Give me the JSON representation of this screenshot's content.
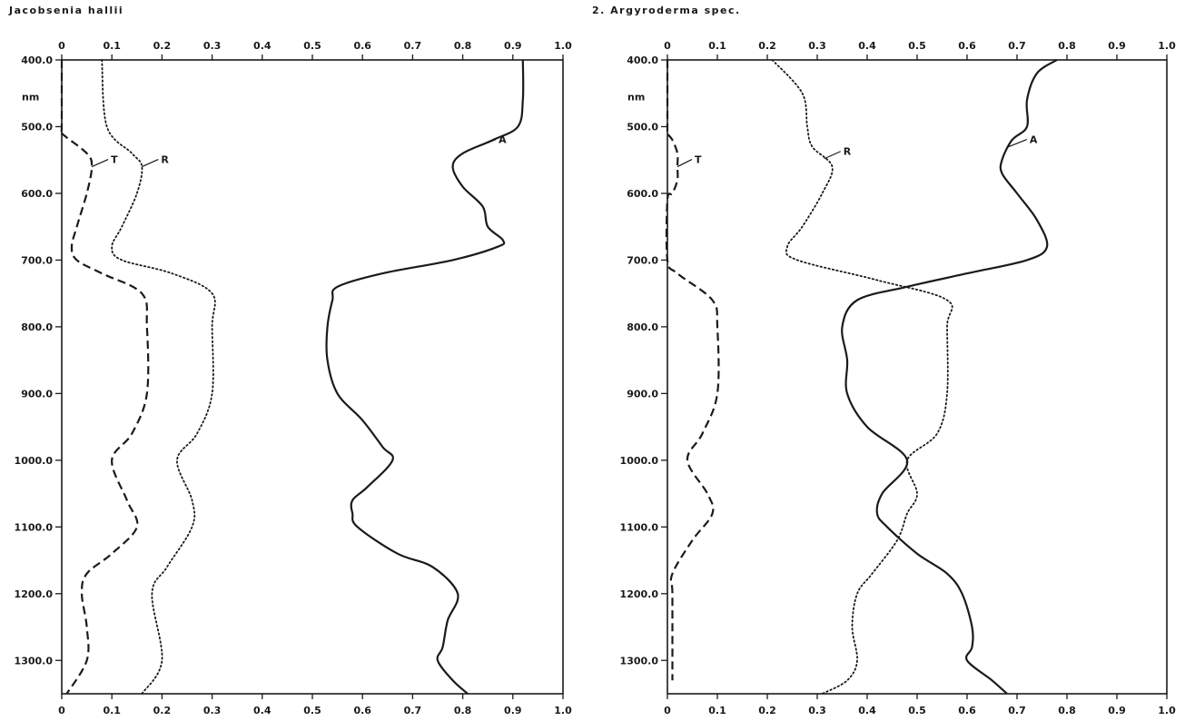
{
  "chart_data": [
    {
      "type": "line",
      "title": "Jacobsenia hallii",
      "unit_label": "nm",
      "xlim": [
        0,
        1.0
      ],
      "ylim": [
        400,
        1350
      ],
      "y_reversed": true,
      "x_ticks": [
        "0",
        "0.1",
        "0.2",
        "0.3",
        "0.4",
        "0.5",
        "0.6",
        "0.7",
        "0.8",
        "0.9",
        "1.0"
      ],
      "y_ticks": [
        "400.0",
        "500.0",
        "600.0",
        "700.0",
        "800.0",
        "900.0",
        "1000.0",
        "1100.0",
        "1200.0",
        "1300.0"
      ],
      "series": [
        {
          "name": "T",
          "style": "dashed",
          "wavelength": [
            400,
            500,
            510,
            540,
            560,
            600,
            650,
            680,
            700,
            720,
            750,
            800,
            900,
            960,
            1000,
            1060,
            1100,
            1140,
            1170,
            1200,
            1250,
            1300,
            1350
          ],
          "values": [
            0.0,
            0.0,
            0.0,
            0.05,
            0.06,
            0.05,
            0.03,
            0.02,
            0.03,
            0.08,
            0.16,
            0.17,
            0.17,
            0.14,
            0.1,
            0.13,
            0.15,
            0.1,
            0.05,
            0.04,
            0.05,
            0.05,
            0.01
          ]
        },
        {
          "name": "R",
          "style": "dotted",
          "wavelength": [
            400,
            500,
            540,
            560,
            600,
            650,
            680,
            700,
            720,
            750,
            800,
            900,
            960,
            1000,
            1060,
            1100,
            1160,
            1200,
            1300,
            1350
          ],
          "values": [
            0.08,
            0.09,
            0.14,
            0.16,
            0.15,
            0.12,
            0.1,
            0.12,
            0.22,
            0.3,
            0.3,
            0.3,
            0.27,
            0.23,
            0.26,
            0.26,
            0.21,
            0.18,
            0.2,
            0.16
          ]
        },
        {
          "name": "A",
          "style": "solid",
          "wavelength": [
            400,
            460,
            500,
            520,
            540,
            560,
            590,
            620,
            650,
            670,
            680,
            700,
            720,
            740,
            760,
            800,
            850,
            900,
            940,
            980,
            1000,
            1040,
            1060,
            1080,
            1100,
            1140,
            1160,
            1200,
            1240,
            1280,
            1300,
            1330,
            1350
          ],
          "values": [
            0.92,
            0.92,
            0.91,
            0.86,
            0.8,
            0.78,
            0.8,
            0.84,
            0.85,
            0.88,
            0.87,
            0.78,
            0.64,
            0.55,
            0.54,
            0.53,
            0.53,
            0.55,
            0.6,
            0.64,
            0.66,
            0.61,
            0.58,
            0.58,
            0.59,
            0.67,
            0.74,
            0.79,
            0.77,
            0.76,
            0.75,
            0.78,
            0.81
          ]
        }
      ]
    },
    {
      "type": "line",
      "title": "2. Argyroderma spec.",
      "unit_label": "nm",
      "xlim": [
        0,
        1.0
      ],
      "ylim": [
        400,
        1350
      ],
      "y_reversed": true,
      "x_ticks": [
        "0",
        "0.1",
        "0.2",
        "0.3",
        "0.4",
        "0.5",
        "0.6",
        "0.7",
        "0.8",
        "0.9",
        "1.0"
      ],
      "y_ticks": [
        "400.0",
        "500.0",
        "600.0",
        "700.0",
        "800.0",
        "900.0",
        "1000.0",
        "1100.0",
        "1200.0",
        "1300.0"
      ],
      "series": [
        {
          "name": "T",
          "style": "dashed",
          "wavelength": [
            400,
            500,
            510,
            520,
            540,
            560,
            580,
            600,
            610,
            700,
            720,
            760,
            800,
            900,
            960,
            1000,
            1050,
            1080,
            1120,
            1170,
            1200,
            1300,
            1330
          ],
          "values": [
            0.0,
            0.0,
            0.0,
            0.01,
            0.02,
            0.02,
            0.02,
            0.01,
            0.0,
            0.0,
            0.02,
            0.09,
            0.1,
            0.1,
            0.07,
            0.04,
            0.08,
            0.09,
            0.05,
            0.01,
            0.01,
            0.01,
            0.01
          ]
        },
        {
          "name": "R",
          "style": "dotted",
          "wavelength": [
            400,
            450,
            500,
            530,
            560,
            600,
            650,
            680,
            700,
            730,
            760,
            800,
            900,
            960,
            1000,
            1050,
            1080,
            1120,
            1170,
            1200,
            1250,
            1300,
            1330,
            1350
          ],
          "values": [
            0.21,
            0.27,
            0.28,
            0.29,
            0.33,
            0.31,
            0.27,
            0.24,
            0.26,
            0.42,
            0.56,
            0.56,
            0.56,
            0.54,
            0.48,
            0.5,
            0.48,
            0.46,
            0.41,
            0.38,
            0.37,
            0.38,
            0.36,
            0.31
          ]
        },
        {
          "name": "A",
          "style": "solid",
          "wavelength": [
            400,
            420,
            460,
            500,
            520,
            550,
            570,
            600,
            640,
            680,
            700,
            720,
            740,
            760,
            800,
            850,
            900,
            950,
            1000,
            1050,
            1080,
            1100,
            1140,
            1170,
            1200,
            1250,
            1280,
            1300,
            1330,
            1350
          ],
          "values": [
            0.78,
            0.74,
            0.72,
            0.72,
            0.69,
            0.67,
            0.67,
            0.7,
            0.74,
            0.76,
            0.72,
            0.6,
            0.48,
            0.38,
            0.35,
            0.36,
            0.36,
            0.4,
            0.48,
            0.43,
            0.42,
            0.44,
            0.5,
            0.56,
            0.59,
            0.61,
            0.61,
            0.6,
            0.65,
            0.68
          ]
        }
      ]
    }
  ]
}
